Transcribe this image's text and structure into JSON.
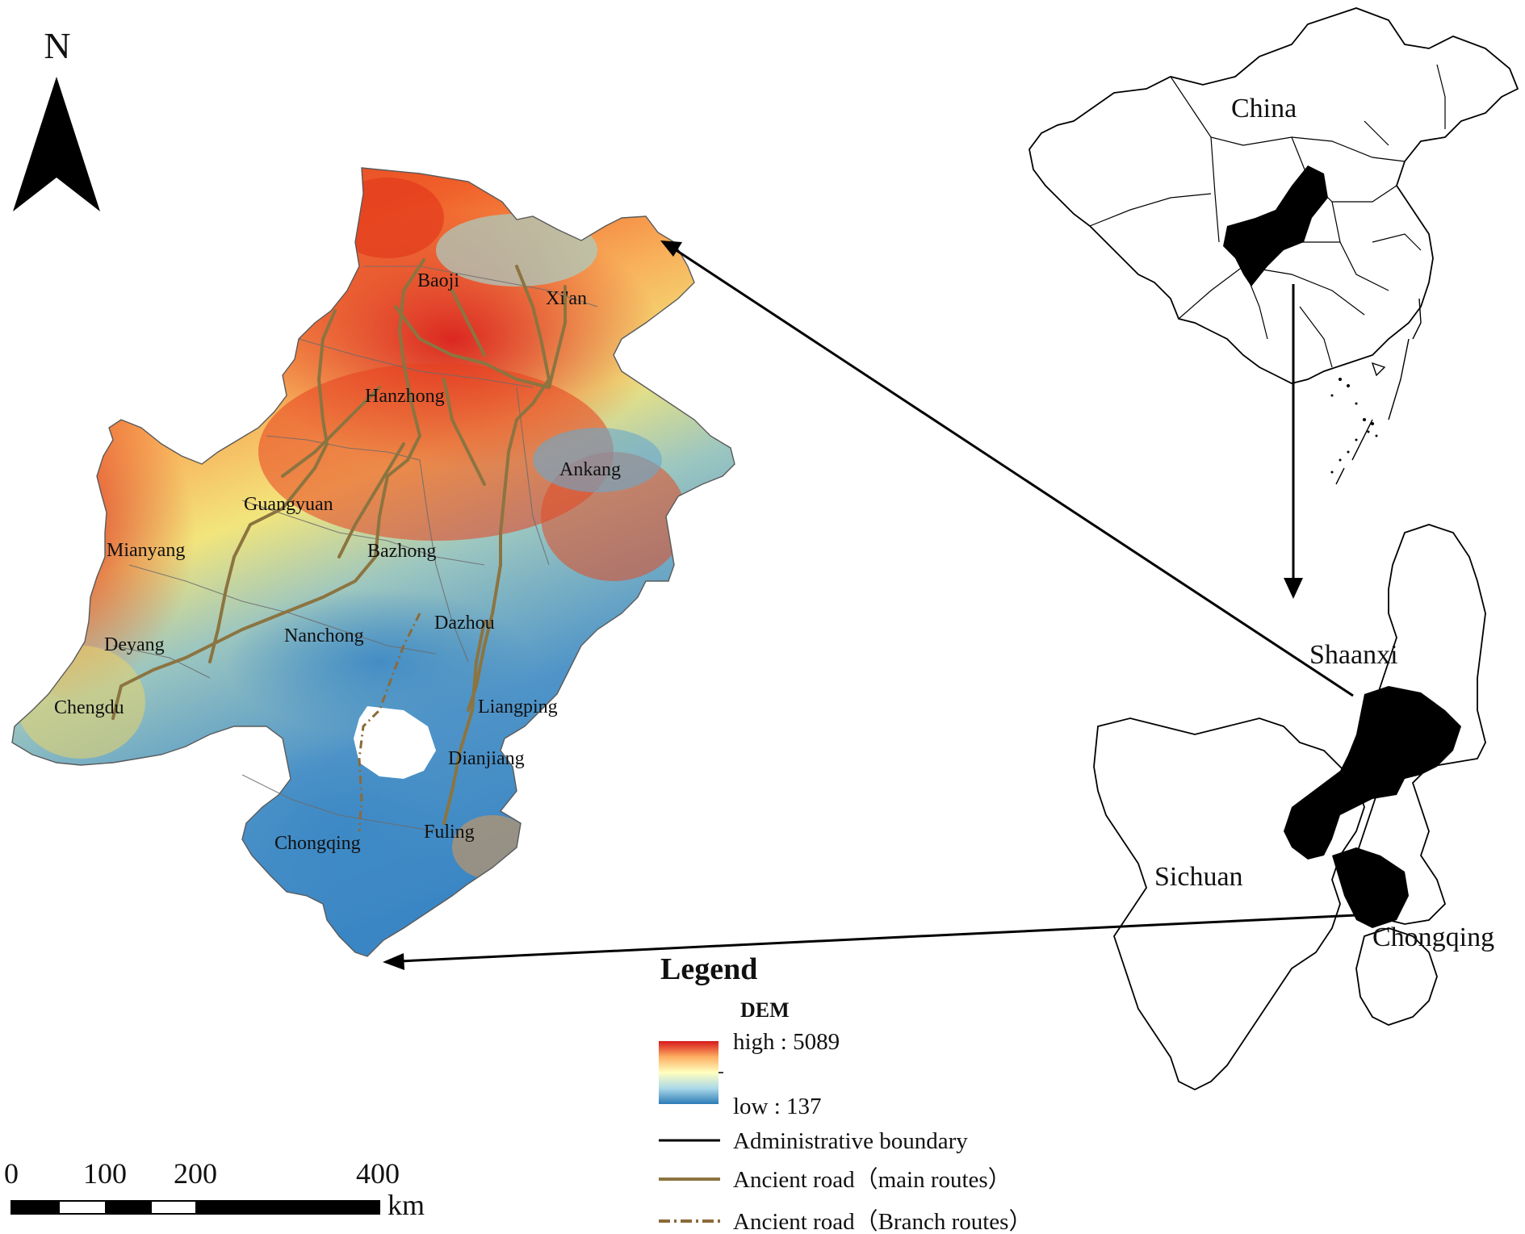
{
  "north_arrow": {
    "label": "N"
  },
  "study_area": {
    "cities": [
      {
        "name": "Baoji"
      },
      {
        "name": "Xi'an"
      },
      {
        "name": "Hanzhong"
      },
      {
        "name": "Ankang"
      },
      {
        "name": "Guangyuan"
      },
      {
        "name": "Mianyang"
      },
      {
        "name": "Bazhong"
      },
      {
        "name": "Nanchong"
      },
      {
        "name": "Dazhou"
      },
      {
        "name": "Deyang"
      },
      {
        "name": "Chengdu"
      },
      {
        "name": "Liangping"
      },
      {
        "name": "Dianjiang"
      },
      {
        "name": "Chongqing"
      },
      {
        "name": "Fuling"
      }
    ]
  },
  "inset_china": {
    "label": "China"
  },
  "inset_provinces": {
    "labels": [
      "Shaanxi",
      "Sichuan",
      "Chongqing"
    ]
  },
  "legend": {
    "title": "Legend",
    "dem": {
      "title": "DEM",
      "high_label": "high : 5089",
      "low_label": "low : 137",
      "colors": [
        "#d7191c",
        "#fdae61",
        "#ffffbf",
        "#abd9e9",
        "#2c7bb6"
      ]
    },
    "items": [
      {
        "label": "Administrative boundary",
        "color": "#000000",
        "style": "solid"
      },
      {
        "label": "Ancient road（main routes）",
        "color": "#8c7440",
        "style": "solid"
      },
      {
        "label": "Ancient road（Branch routes）",
        "color": "#8c6a3a",
        "style": "dash-dot"
      }
    ]
  },
  "scale_bar": {
    "ticks": [
      "0",
      "100",
      "200",
      "400"
    ],
    "unit": "km"
  }
}
